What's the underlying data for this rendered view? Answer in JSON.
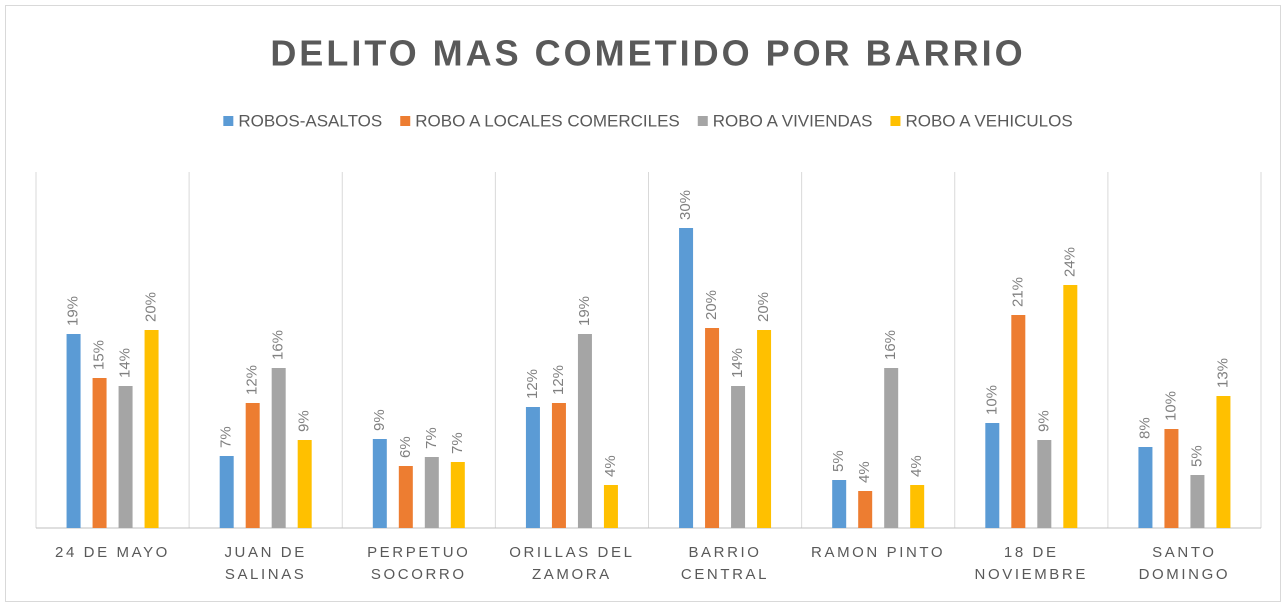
{
  "chart_data": {
    "type": "bar",
    "title": "DELITO MAS COMETIDO POR BARRIO",
    "categories": [
      "24 DE MAYO",
      "JUAN DE SALINAS",
      "PERPETUO SOCORRO",
      "ORILLAS DEL ZAMORA",
      "BARRIO CENTRAL",
      "RAMON PINTO",
      "18 DE NOVIEMBRE",
      "SANTO DOMINGO"
    ],
    "series": [
      {
        "name": "ROBOS-ASALTOS",
        "color": "#5b9bd5",
        "values": [
          19.4,
          7.2,
          8.9,
          12.1,
          30,
          4.8,
          10.5,
          8.1
        ],
        "value_labels": [
          "19%",
          "7%",
          "9%",
          "12%",
          "30%",
          "5%",
          "10%",
          "8%"
        ]
      },
      {
        "name": "ROBO A LOCALES COMERCILES",
        "color": "#ed7d31",
        "values": [
          15,
          12.5,
          6.2,
          12.5,
          20,
          3.7,
          21.3,
          9.9
        ],
        "value_labels": [
          "15%",
          "12%",
          "6%",
          "12%",
          "20%",
          "4%",
          "21%",
          "10%"
        ]
      },
      {
        "name": "ROBO A VIVIENDAS",
        "color": "#a5a5a5",
        "values": [
          14.2,
          16,
          7.1,
          19.4,
          14.2,
          16,
          8.8,
          5.3
        ],
        "value_labels": [
          "14%",
          "16%",
          "7%",
          "19%",
          "14%",
          "16%",
          "9%",
          "5%"
        ]
      },
      {
        "name": "ROBO A VEHICULOS",
        "color": "#ffc000",
        "values": [
          19.8,
          8.8,
          6.6,
          4.3,
          19.8,
          4.3,
          24.3,
          13.2
        ],
        "value_labels": [
          "20%",
          "9%",
          "7%",
          "4%",
          "20%",
          "4%",
          "24%",
          "13%"
        ]
      }
    ]
  }
}
